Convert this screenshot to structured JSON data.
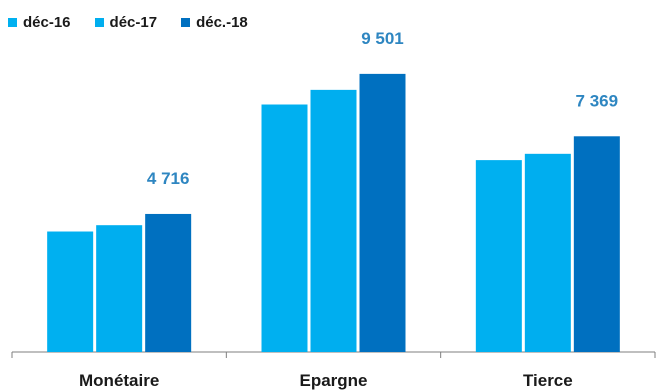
{
  "chart_data": {
    "type": "bar",
    "categories": [
      "Monétaire",
      "Epargne",
      "Tierce"
    ],
    "series": [
      {
        "name": "déc-16",
        "values": [
          4116,
          8455,
          6555
        ],
        "color": "#00B0F0"
      },
      {
        "name": "déc-17",
        "values": [
          4332,
          8955,
          6770
        ],
        "color": "#00AEEF"
      },
      {
        "name": "déc.-18",
        "values": [
          4716,
          9501,
          7369
        ],
        "color": "#0070C0"
      }
    ],
    "data_labels": [
      {
        "category": "Monétaire",
        "series": "déc.-18",
        "text": "4 716"
      },
      {
        "category": "Epargne",
        "series": "déc.-18",
        "text": "9 501"
      },
      {
        "category": "Tierce",
        "series": "déc.-18",
        "text": "7 369"
      }
    ],
    "data_label_color": "#2E86C1",
    "legend_position": "top-left",
    "grid": false,
    "ylim": [
      0,
      11000
    ]
  }
}
